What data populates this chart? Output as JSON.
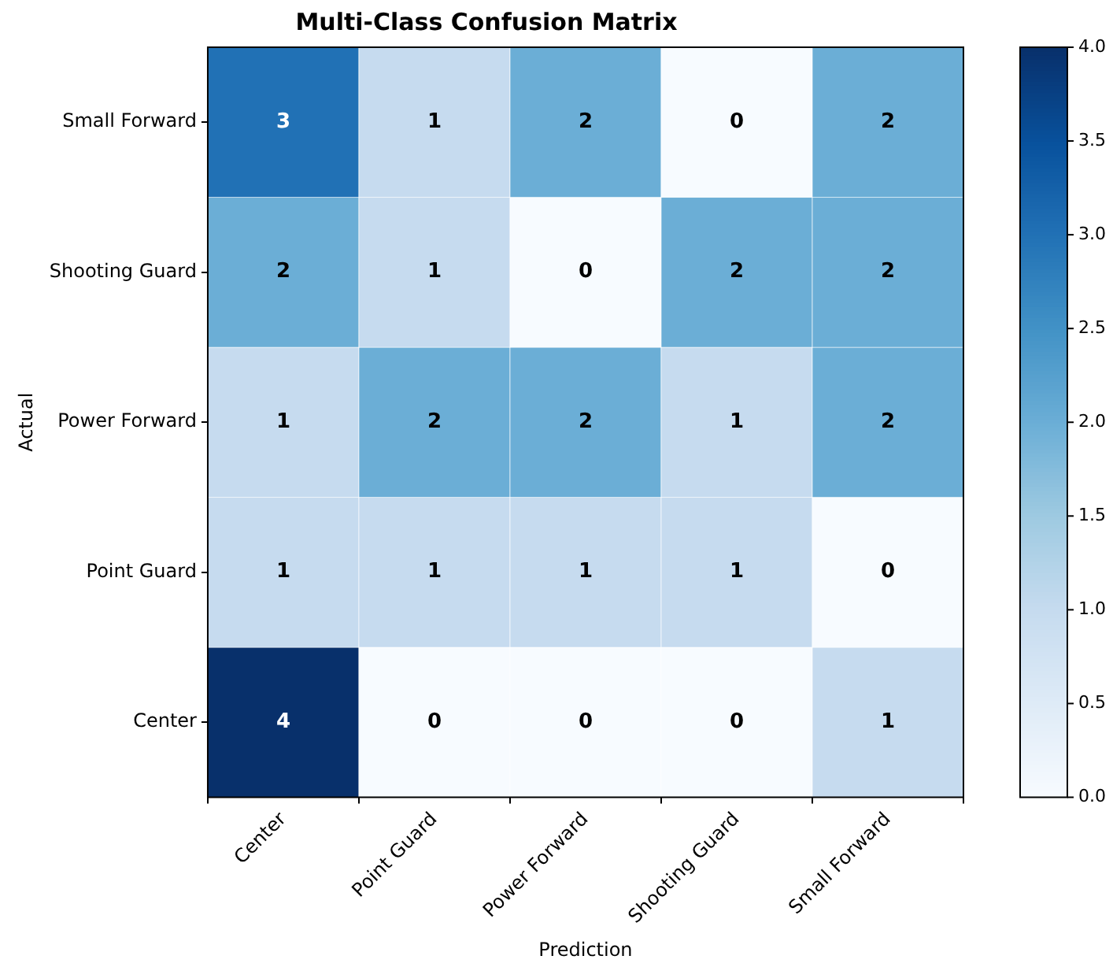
{
  "chart_data": {
    "type": "heatmap",
    "title": "Multi-Class Confusion Matrix",
    "xlabel": "Prediction",
    "ylabel": "Actual",
    "categories": [
      "Center",
      "Point Guard",
      "Power Forward",
      "Shooting Guard",
      "Small Forward"
    ],
    "y_categories": [
      "Small Forward",
      "Shooting Guard",
      "Power Forward",
      "Point Guard",
      "Center"
    ],
    "cells": [
      [
        3,
        1,
        2,
        0,
        2
      ],
      [
        2,
        1,
        0,
        2,
        2
      ],
      [
        1,
        2,
        2,
        1,
        2
      ],
      [
        1,
        1,
        1,
        1,
        0
      ],
      [
        4,
        0,
        0,
        0,
        1
      ]
    ],
    "data_labels": true,
    "clim": [
      0,
      4
    ],
    "cticks": [
      {
        "value": 0,
        "label": "0.0"
      },
      {
        "value": 0.5,
        "label": "0.5"
      },
      {
        "value": 1,
        "label": "1.0"
      },
      {
        "value": 1.5,
        "label": "1.5"
      },
      {
        "value": 2,
        "label": "2.0"
      },
      {
        "value": 2.5,
        "label": "2.5"
      },
      {
        "value": 3,
        "label": "3.0"
      },
      {
        "value": 3.5,
        "label": "3.5"
      },
      {
        "value": 4,
        "label": "4.0"
      }
    ]
  }
}
